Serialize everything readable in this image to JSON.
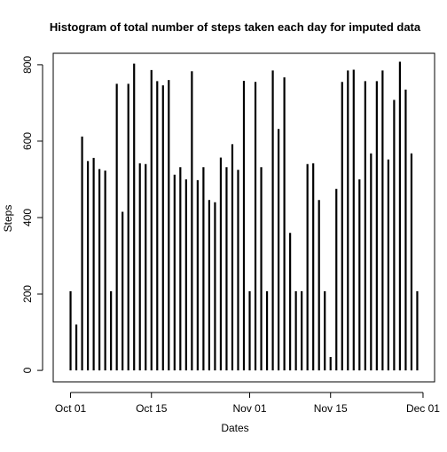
{
  "chart_data": {
    "type": "bar",
    "title": "Histogram of total number of steps taken each day for imputed data",
    "xlabel": "Dates",
    "ylabel": "Steps",
    "x_tick_labels": [
      "Oct 01",
      "Oct 15",
      "Nov 01",
      "Nov 15",
      "Dec 01"
    ],
    "x_tick_dates": [
      "2012-10-01",
      "2012-10-15",
      "2012-11-01",
      "2012-11-15",
      "2012-12-01"
    ],
    "y_ticks": [
      0,
      200,
      400,
      600,
      800
    ],
    "ylim": [
      -30,
      830
    ],
    "xlim": [
      "2012-09-28",
      "2012-12-03"
    ],
    "grid": false,
    "bar_color": "#000000",
    "series": [
      {
        "x": [
          "2012-10-01",
          "2012-10-02",
          "2012-10-03",
          "2012-10-04",
          "2012-10-05",
          "2012-10-06",
          "2012-10-07",
          "2012-10-08",
          "2012-10-09",
          "2012-10-10",
          "2012-10-11",
          "2012-10-12",
          "2012-10-13",
          "2012-10-14",
          "2012-10-15",
          "2012-10-16",
          "2012-10-17",
          "2012-10-18",
          "2012-10-19",
          "2012-10-20",
          "2012-10-21",
          "2012-10-22",
          "2012-10-23",
          "2012-10-24",
          "2012-10-25",
          "2012-10-26",
          "2012-10-27",
          "2012-10-28",
          "2012-10-29",
          "2012-10-30",
          "2012-10-31",
          "2012-11-01",
          "2012-11-02",
          "2012-11-03",
          "2012-11-04",
          "2012-11-05",
          "2012-11-06",
          "2012-11-07",
          "2012-11-08",
          "2012-11-09",
          "2012-11-10",
          "2012-11-11",
          "2012-11-12",
          "2012-11-13",
          "2012-11-14",
          "2012-11-15",
          "2012-11-16",
          "2012-11-17",
          "2012-11-18",
          "2012-11-19",
          "2012-11-20",
          "2012-11-21",
          "2012-11-22",
          "2012-11-23",
          "2012-11-24",
          "2012-11-25",
          "2012-11-26",
          "2012-11-27",
          "2012-11-28",
          "2012-11-29",
          "2012-11-30"
        ],
        "values": [
          207,
          120,
          612,
          548,
          556,
          527,
          523,
          207,
          750,
          415,
          750,
          803,
          542,
          540,
          786,
          757,
          746,
          760,
          512,
          532,
          500,
          783,
          498,
          532,
          446,
          440,
          557,
          532,
          592,
          525,
          758,
          207,
          755,
          532,
          207,
          785,
          632,
          767,
          360,
          207,
          207,
          540,
          542,
          446,
          207,
          35,
          475,
          755,
          785,
          787,
          500,
          757,
          568,
          757,
          785,
          552,
          708,
          808,
          735,
          568,
          207
        ]
      }
    ]
  }
}
